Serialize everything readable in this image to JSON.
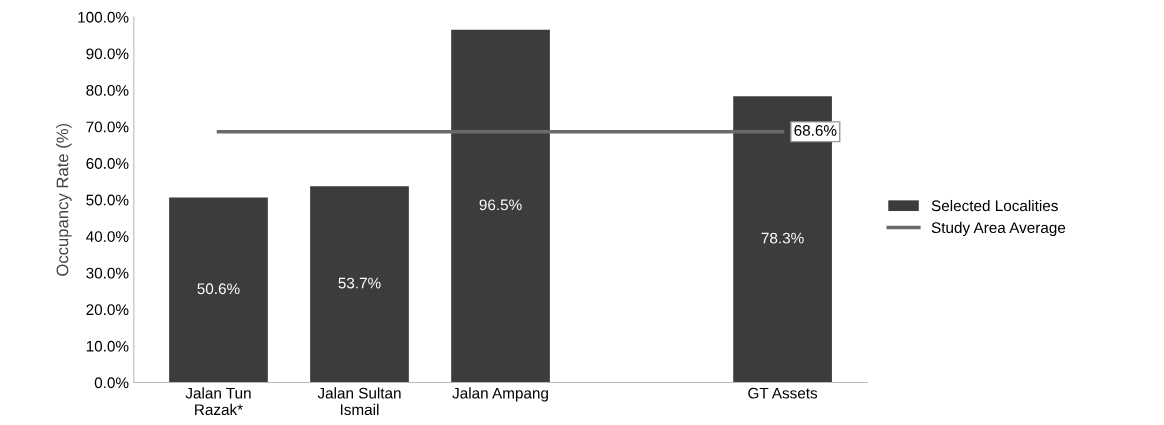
{
  "chart_data": {
    "type": "bar",
    "ylabel": "Occupancy Rate (%)",
    "categories": [
      "Jalan Tun Razak*",
      "Jalan Sultan Ismail",
      "Jalan Ampang",
      null,
      "GT Assets"
    ],
    "series": [
      {
        "name": "Selected Localities",
        "color": "#3c3c3c",
        "values": [
          50.6,
          53.7,
          96.5,
          null,
          78.3
        ],
        "value_labels": [
          "50.6%",
          "53.7%",
          "96.5%",
          null,
          "78.3%"
        ]
      },
      {
        "name": "Study Area Average",
        "type": "line",
        "color": "#6a6a6a",
        "values": [
          68.6,
          68.6,
          68.6,
          68.6,
          68.6
        ],
        "value_labels": [
          null,
          null,
          null,
          null,
          "68.6%"
        ]
      }
    ],
    "ylim": [
      0,
      100
    ],
    "yticks": [
      {
        "value": 0,
        "label": "0.0%"
      },
      {
        "value": 10,
        "label": "10.0%"
      },
      {
        "value": 20,
        "label": "20.0%"
      },
      {
        "value": 30,
        "label": "30.0%"
      },
      {
        "value": 40,
        "label": "40.0%"
      },
      {
        "value": 50,
        "label": "50.0%"
      },
      {
        "value": 60,
        "label": "60.0%"
      },
      {
        "value": 70,
        "label": "70.0%"
      },
      {
        "value": 80,
        "label": "80.0%"
      },
      {
        "value": 90,
        "label": "90.0%"
      },
      {
        "value": 100,
        "label": "100.0%"
      }
    ],
    "grid": false,
    "legend": "right"
  }
}
